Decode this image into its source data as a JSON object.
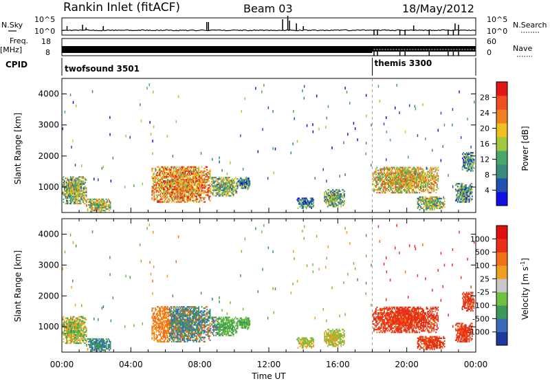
{
  "header": {
    "title": "Rankin Inlet (fitACF)",
    "beam": "Beam 03",
    "date": "18/May/2012"
  },
  "strips": {
    "nsky_label": "N.Sky",
    "nsky_ticks": [
      "10^5",
      "10^0"
    ],
    "nsearch_label": "N.Search",
    "nsearch_ticks": [
      "10^5",
      "10^0"
    ],
    "freq_label": "Freq.",
    "freq_unit": "[MHz]",
    "freq_ticks": [
      "18",
      "8"
    ],
    "nave_label": "Nave",
    "nave_ticks": [
      "60",
      "0"
    ],
    "cpid_label": "CPID",
    "cpid_segments": [
      {
        "name": "twofsound 3501",
        "start_hour": 0,
        "end_hour": 18.0
      },
      {
        "name": "themis 3300",
        "start_hour": 18.0,
        "end_hour": 24
      }
    ]
  },
  "chart_data": [
    {
      "type": "heatmap",
      "name": "power",
      "ylabel": "Slant Range [km]",
      "xlabel": "Time UT",
      "x_ticks": [
        "00:00",
        "04:00",
        "08:00",
        "12:00",
        "16:00",
        "20:00",
        "00:00"
      ],
      "x_range_hours": [
        0,
        24
      ],
      "y_range_km": [
        180,
        4500
      ],
      "y_ticks": [
        1000,
        2000,
        3000,
        4000
      ],
      "colorbar": {
        "label": "Power [dB]",
        "ticks": [
          "28",
          "24",
          "20",
          "16",
          "12",
          "8",
          "4"
        ],
        "range": [
          0,
          30
        ],
        "colors": [
          "#1010e0",
          "#2050b0",
          "#3a8a80",
          "#48a86a",
          "#a0c840",
          "#f0c020",
          "#f08020",
          "#f05020",
          "#e01818"
        ]
      },
      "echo_regions": [
        {
          "t0": 0.0,
          "t1": 1.4,
          "r0": 450,
          "r1": 1350,
          "level": 0.45
        },
        {
          "t0": 1.4,
          "t1": 2.8,
          "r0": 180,
          "r1": 600,
          "level": 0.55
        },
        {
          "t0": 5.2,
          "t1": 8.6,
          "r0": 500,
          "r1": 1650,
          "level": 0.7
        },
        {
          "t0": 8.6,
          "t1": 10.2,
          "r0": 700,
          "r1": 1300,
          "level": 0.45
        },
        {
          "t0": 10.2,
          "t1": 10.9,
          "r0": 900,
          "r1": 1300,
          "level": 0.3
        },
        {
          "t0": 13.6,
          "t1": 14.6,
          "r0": 300,
          "r1": 650,
          "level": 0.3
        },
        {
          "t0": 15.2,
          "t1": 16.4,
          "r0": 350,
          "r1": 900,
          "level": 0.4
        },
        {
          "t0": 18.0,
          "t1": 21.8,
          "r0": 800,
          "r1": 1650,
          "level": 0.6
        },
        {
          "t0": 20.6,
          "t1": 22.2,
          "r0": 250,
          "r1": 700,
          "level": 0.45
        },
        {
          "t0": 22.8,
          "t1": 23.8,
          "r0": 500,
          "r1": 1100,
          "level": 0.35
        },
        {
          "t0": 23.2,
          "t1": 23.9,
          "r0": 1500,
          "r1": 2100,
          "level": 0.3
        }
      ]
    },
    {
      "type": "heatmap",
      "name": "velocity",
      "ylabel": "Slant Range [km]",
      "xlabel": "Time UT",
      "x_ticks": [
        "00:00",
        "04:00",
        "08:00",
        "12:00",
        "16:00",
        "20:00",
        "00:00"
      ],
      "x_range_hours": [
        0,
        24
      ],
      "y_range_km": [
        180,
        4500
      ],
      "y_ticks": [
        1000,
        2000,
        3000,
        4000
      ],
      "colorbar": {
        "label": "Velocity [m s",
        "label_exp": "-1",
        "ticks": [
          "1000",
          "500",
          "100",
          "25",
          "-25",
          "-100",
          "-500",
          "-1000"
        ],
        "colors": [
          "#1a3aa0",
          "#3a6ab8",
          "#3a9a5a",
          "#70c040",
          "#c8c8c8",
          "#f0a020",
          "#f07018",
          "#e83018",
          "#e01010"
        ]
      },
      "echo_regions": [
        {
          "t0": 0.0,
          "t1": 1.4,
          "r0": 450,
          "r1": 1350,
          "level": 0.45
        },
        {
          "t0": 1.4,
          "t1": 2.8,
          "r0": 180,
          "r1": 600,
          "level": 0.55
        },
        {
          "t0": 5.2,
          "t1": 8.6,
          "r0": 500,
          "r1": 1650,
          "level": 0.7
        },
        {
          "t0": 8.6,
          "t1": 10.2,
          "r0": 700,
          "r1": 1300,
          "level": 0.45
        },
        {
          "t0": 10.2,
          "t1": 10.9,
          "r0": 900,
          "r1": 1300,
          "level": 0.3
        },
        {
          "t0": 13.6,
          "t1": 14.6,
          "r0": 300,
          "r1": 650,
          "level": 0.3
        },
        {
          "t0": 15.2,
          "t1": 16.4,
          "r0": 350,
          "r1": 900,
          "level": 0.4
        },
        {
          "t0": 18.0,
          "t1": 21.8,
          "r0": 800,
          "r1": 1650,
          "level": 0.6
        },
        {
          "t0": 20.6,
          "t1": 22.2,
          "r0": 250,
          "r1": 700,
          "level": 0.45
        },
        {
          "t0": 22.8,
          "t1": 23.8,
          "r0": 500,
          "r1": 1100,
          "level": 0.35
        },
        {
          "t0": 23.2,
          "t1": 23.9,
          "r0": 1500,
          "r1": 2100,
          "level": 0.3
        }
      ]
    }
  ]
}
